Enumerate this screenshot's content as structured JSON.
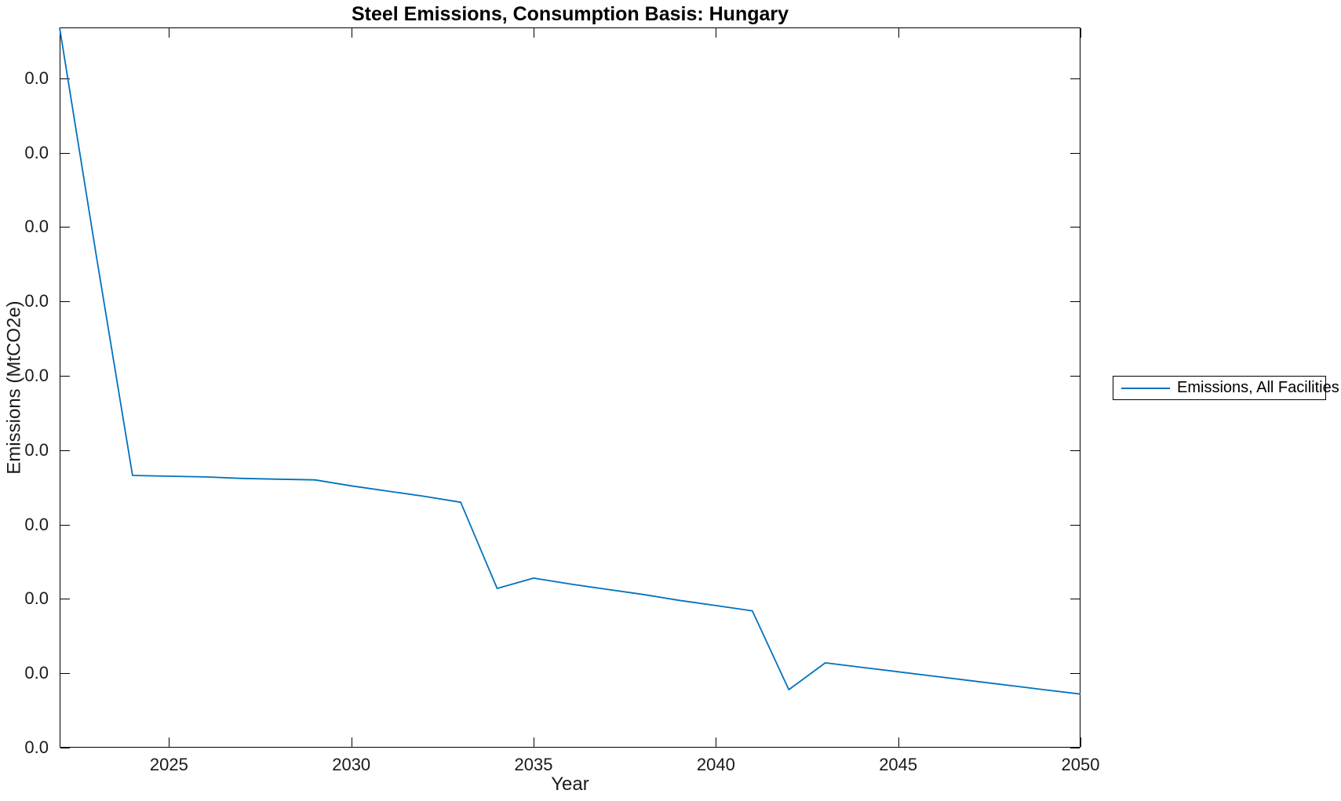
{
  "title": "Steel Emissions, Consumption Basis: Hungary",
  "colors": {
    "series_line": "#0072BD",
    "axis": "#000000",
    "text": "#1a1a1a",
    "background": "#ffffff"
  },
  "chart_data": {
    "type": "line",
    "title": "Steel Emissions, Consumption Basis: Hungary",
    "xlabel": "Year",
    "ylabel": "Emissions (MtCO2e)",
    "grid": false,
    "box": true,
    "xlim": [
      2022,
      2050
    ],
    "x_ticks": [
      2025,
      2030,
      2035,
      2040,
      2045,
      2050
    ],
    "y_tick_label_displayed": "0.0",
    "y_tick_count": 10,
    "y_units_note": "All 10 y-axis tick labels render as 0.0 (values are below the displayed precision); series y values are given in y-axis tick units, one unit = spacing between adjacent 0.0 ticks, bottom axis = 0",
    "ylim_tick_units": [
      0,
      9.684
    ],
    "legend": {
      "position": "outside-right",
      "entries": [
        {
          "label": "Emissions, All Facilities",
          "color": "#0072BD"
        }
      ]
    },
    "series": [
      {
        "name": "Emissions, All Facilities",
        "color": "#0072BD",
        "x": [
          2022,
          2023,
          2024,
          2025,
          2026,
          2027,
          2028,
          2029,
          2030,
          2031,
          2032,
          2033,
          2034,
          2035,
          2036,
          2037,
          2038,
          2039,
          2040,
          2041,
          2042,
          2043,
          2044,
          2045,
          2046,
          2047,
          2048,
          2049,
          2050
        ],
        "y": [
          9.68,
          6.63,
          3.66,
          3.65,
          3.64,
          3.62,
          3.61,
          3.6,
          3.52,
          3.45,
          3.38,
          3.3,
          2.14,
          2.28,
          2.2,
          2.13,
          2.06,
          1.98,
          1.91,
          1.84,
          0.78,
          1.14,
          1.08,
          1.02,
          0.96,
          0.9,
          0.84,
          0.78,
          0.72
        ]
      }
    ]
  }
}
